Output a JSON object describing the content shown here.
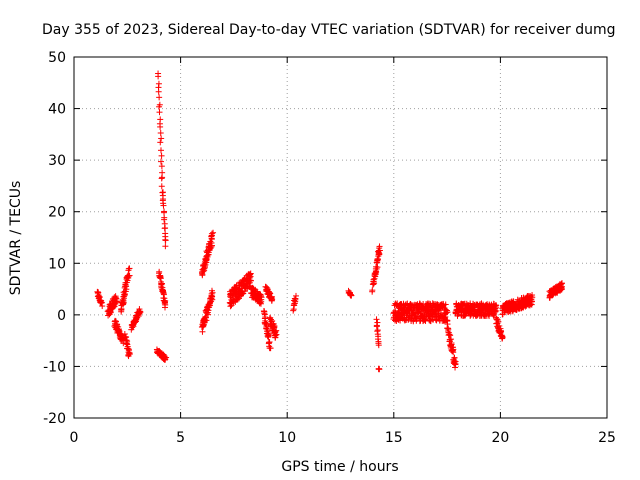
{
  "chart_data": {
    "type": "scatter",
    "title": "Day 355 of 2023, Sidereal Day-to-day VTEC variation (SDTVAR) for receiver dumg",
    "xlabel": "GPS time / hours",
    "ylabel": "SDTVAR / TECUs",
    "xlim": [
      0,
      25
    ],
    "ylim": [
      -20,
      50
    ],
    "xticks": [
      0,
      5,
      10,
      15,
      20,
      25
    ],
    "yticks": [
      -20,
      -10,
      0,
      10,
      20,
      30,
      40,
      50
    ],
    "grid": true,
    "series": [
      {
        "name": "SDTVAR",
        "color": "#ff0000",
        "marker": "+",
        "segments": [
          {
            "x0": 1.1,
            "x1": 1.3,
            "y0": 4.5,
            "y1": 2.0,
            "spread": 1.0
          },
          {
            "x0": 1.6,
            "x1": 2.0,
            "y0": 0.5,
            "y1": 3.5,
            "spread": 2.0
          },
          {
            "x0": 1.9,
            "x1": 2.3,
            "y0": -1.5,
            "y1": -5.0,
            "spread": 1.5
          },
          {
            "x0": 2.2,
            "x1": 2.6,
            "y0": 1.0,
            "y1": 8.5,
            "spread": 2.0
          },
          {
            "x0": 2.4,
            "x1": 2.6,
            "y0": -4.0,
            "y1": -8.0,
            "spread": 1.0
          },
          {
            "x0": 2.7,
            "x1": 3.1,
            "y0": -2.5,
            "y1": 1.0,
            "spread": 1.0
          },
          {
            "x0": 3.95,
            "x1": 4.15,
            "y0": 47.0,
            "y1": 24.0,
            "spread": 1.0
          },
          {
            "x0": 4.15,
            "x1": 4.3,
            "y0": 24.0,
            "y1": 13.5,
            "spread": 1.0
          },
          {
            "x0": 4.0,
            "x1": 4.3,
            "y0": 8.0,
            "y1": 2.0,
            "spread": 1.5
          },
          {
            "x0": 3.9,
            "x1": 4.3,
            "y0": -7.0,
            "y1": -8.5,
            "spread": 0.8
          },
          {
            "x0": 6.0,
            "x1": 6.2,
            "y0": 8.0,
            "y1": 11.0,
            "spread": 1.5
          },
          {
            "x0": 6.2,
            "x1": 6.5,
            "y0": 11.0,
            "y1": 15.0,
            "spread": 2.0
          },
          {
            "x0": 6.0,
            "x1": 6.5,
            "y0": -2.5,
            "y1": 4.0,
            "spread": 2.0
          },
          {
            "x0": 7.3,
            "x1": 8.3,
            "y0": 3.0,
            "y1": 7.0,
            "spread": 3.0
          },
          {
            "x0": 8.3,
            "x1": 8.8,
            "y0": 4.5,
            "y1": 3.0,
            "spread": 2.0
          },
          {
            "x0": 8.9,
            "x1": 9.2,
            "y0": 0.0,
            "y1": -6.0,
            "spread": 2.0
          },
          {
            "x0": 9.0,
            "x1": 9.3,
            "y0": 5.0,
            "y1": 3.0,
            "spread": 1.0
          },
          {
            "x0": 9.2,
            "x1": 9.5,
            "y0": -1.0,
            "y1": -4.0,
            "spread": 2.0
          },
          {
            "x0": 10.3,
            "x1": 10.4,
            "y0": 1.0,
            "y1": 4.0,
            "spread": 2.0
          },
          {
            "x0": 12.9,
            "x1": 13.0,
            "y0": 4.5,
            "y1": 3.8,
            "spread": 0.5
          },
          {
            "x0": 14.0,
            "x1": 14.35,
            "y0": 5.0,
            "y1": 13.0,
            "spread": 1.5
          },
          {
            "x0": 14.2,
            "x1": 14.3,
            "y0": -1.0,
            "y1": -6.0,
            "spread": 0.3
          },
          {
            "x0": 14.3,
            "x1": 14.3,
            "y0": -10.5,
            "y1": -10.5,
            "spread": 0.1
          },
          {
            "x0": 15.0,
            "x1": 17.5,
            "y0": 0.5,
            "y1": 0.5,
            "spread": 3.5
          },
          {
            "x0": 17.5,
            "x1": 17.9,
            "y0": -2.0,
            "y1": -10.0,
            "spread": 2.0
          },
          {
            "x0": 17.9,
            "x1": 19.8,
            "y0": 1.0,
            "y1": 1.0,
            "spread": 2.5
          },
          {
            "x0": 19.8,
            "x1": 20.1,
            "y0": -1.0,
            "y1": -4.5,
            "spread": 1.5
          },
          {
            "x0": 20.1,
            "x1": 21.5,
            "y0": 1.0,
            "y1": 3.0,
            "spread": 2.0
          },
          {
            "x0": 22.3,
            "x1": 22.9,
            "y0": 4.0,
            "y1": 5.5,
            "spread": 1.5
          }
        ]
      }
    ]
  }
}
